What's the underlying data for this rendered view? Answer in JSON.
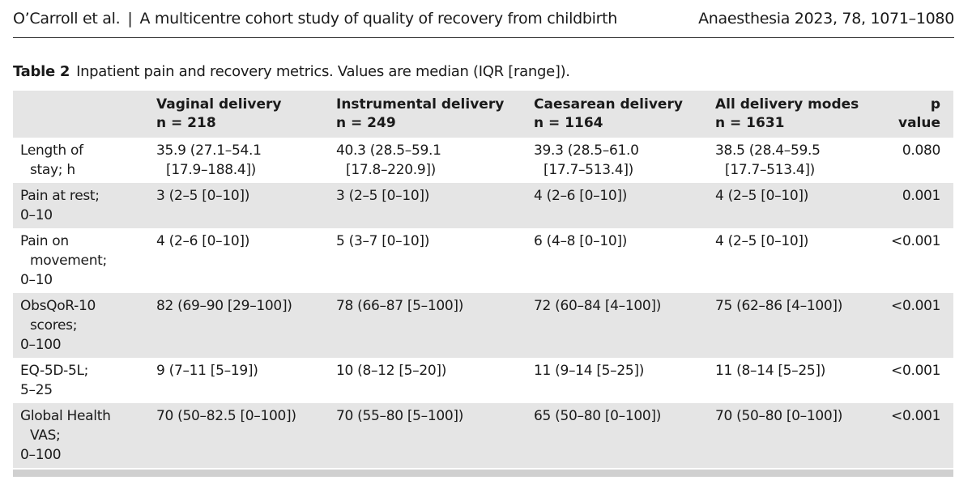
{
  "header": {
    "left": "O’Carroll et al.",
    "separator": "|",
    "title": "A multicentre cohort study of quality of recovery from childbirth",
    "right": "Anaesthesia 2023, 78, 1071–1080"
  },
  "caption": {
    "label": "Table 2",
    "text": "Inpatient pain and recovery metrics. Values are median (IQR [range])."
  },
  "table": {
    "columns": [
      {
        "name": "Vaginal delivery",
        "n": "n = 218"
      },
      {
        "name": "Instrumental delivery",
        "n": "n = 249"
      },
      {
        "name": "Caesarean delivery",
        "n": "n = 1164"
      },
      {
        "name": "All delivery modes",
        "n": "n = 1631"
      }
    ],
    "p_header": "p value",
    "rows": [
      {
        "label": [
          "Length of",
          "stay; h"
        ],
        "cells": [
          [
            "35.9 (27.1–54.1",
            "[17.9–188.4])"
          ],
          [
            "40.3 (28.5–59.1",
            "[17.8–220.9])"
          ],
          [
            "39.3 (28.5–61.0",
            "[17.7–513.4])"
          ],
          [
            "38.5 (28.4–59.5",
            "[17.7–513.4])"
          ]
        ],
        "p": "0.080"
      },
      {
        "label": [
          "Pain at rest;",
          "0–10"
        ],
        "cells": [
          [
            "3 (2–5 [0–10])"
          ],
          [
            "3 (2–5 [0–10])"
          ],
          [
            "4 (2–6 [0–10])"
          ],
          [
            "4 (2–5 [0–10])"
          ]
        ],
        "p": "0.001"
      },
      {
        "label": [
          "Pain on",
          "movement;",
          "0–10"
        ],
        "cells": [
          [
            "4 (2–6 [0–10])"
          ],
          [
            "5 (3–7 [0–10])"
          ],
          [
            "6 (4–8 [0–10])"
          ],
          [
            "4 (2–5 [0–10])"
          ]
        ],
        "p": "<0.001"
      },
      {
        "label": [
          "ObsQoR-10",
          "scores;",
          "0–100"
        ],
        "cells": [
          [
            "82 (69–90 [29–100])"
          ],
          [
            "78 (66–87 [5–100])"
          ],
          [
            "72 (60–84 [4–100])"
          ],
          [
            "75 (62–86 [4–100])"
          ]
        ],
        "p": "<0.001"
      },
      {
        "label": [
          "EQ-5D-5L;",
          "5–25"
        ],
        "cells": [
          [
            "9 (7–11 [5–19])"
          ],
          [
            "10 (8–12 [5–20])"
          ],
          [
            "11 (9–14 [5–25])"
          ],
          [
            "11 (8–14 [5–25])"
          ]
        ],
        "p": "<0.001"
      },
      {
        "label": [
          "Global Health",
          "VAS;",
          "0–100"
        ],
        "cells": [
          [
            "70 (50–82.5 [0–100])"
          ],
          [
            "70 (55–80 [5–100])"
          ],
          [
            "65 (50–80 [0–100])"
          ],
          [
            "70 (50–80 [0–100])"
          ]
        ],
        "p": "<0.001"
      }
    ]
  }
}
